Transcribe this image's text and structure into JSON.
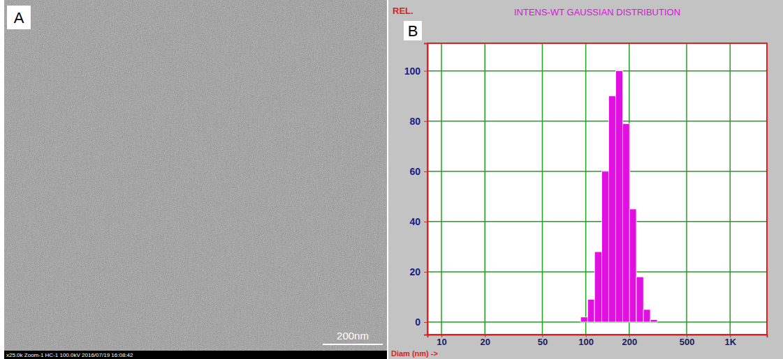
{
  "image_panel": {
    "label": "A",
    "scale_bar": "200nm",
    "caption": "x25.0k Zoom-1 HC-1 100.0kV 2016/07/19 16:08:42"
  },
  "chart_data": {
    "type": "histogram",
    "panel_label": "B",
    "title": "INTENS-WT GAUSSIAN DISTRIBUTION",
    "y_label": "REL.",
    "x_label": "Diam (nm) ->",
    "bins": [
      92,
      103,
      115,
      129,
      144,
      161,
      180,
      201,
      224,
      251,
      280,
      313
    ],
    "values": [
      2,
      9,
      28,
      60,
      90,
      100,
      79,
      45,
      18,
      5,
      1
    ],
    "color": "#e010e0",
    "log": "x",
    "xlim": [
      8,
      1800
    ],
    "xticks": [
      10,
      20,
      50,
      100,
      200,
      500,
      {
        "value": 1000,
        "label": "1K"
      }
    ],
    "ylim": [
      -5,
      111
    ],
    "yticks": [
      0,
      20,
      40,
      60,
      80,
      100
    ],
    "grid": true
  }
}
